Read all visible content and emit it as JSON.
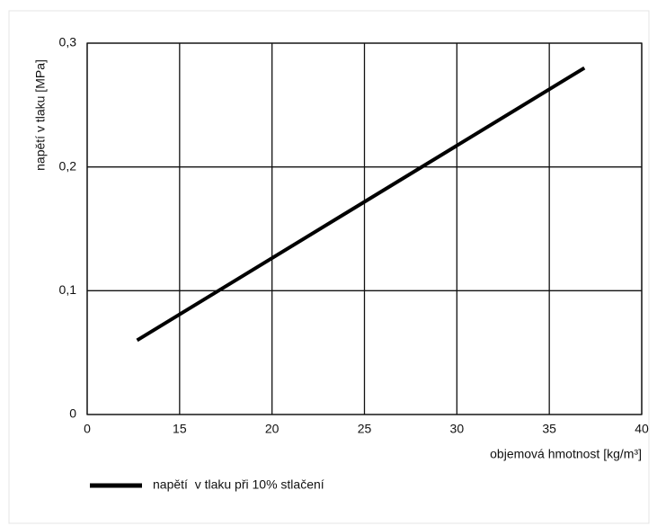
{
  "chart_data": {
    "type": "line",
    "xlabel": "objemová hmotnost [kg/m³]",
    "ylabel": "napětí v tlaku [MPa]",
    "x": [
      12.7,
      36.9
    ],
    "series": [
      {
        "name": "napětí  v tlaku při 10% stlačení",
        "color": "#000000",
        "values": [
          0.06,
          0.28
        ]
      }
    ],
    "xlim": [
      10,
      40
    ],
    "xticks": [
      {
        "value": 10,
        "label": "0"
      },
      15,
      20,
      25,
      30,
      35,
      40
    ],
    "ylim": [
      0,
      0.3
    ],
    "yticks": [
      {
        "value": 0,
        "label": "0"
      },
      {
        "value": 0.1,
        "label": "0,1"
      },
      {
        "value": 0.2,
        "label": "0,2"
      },
      {
        "value": 0.3,
        "label": "0,3"
      }
    ],
    "grid": true
  }
}
